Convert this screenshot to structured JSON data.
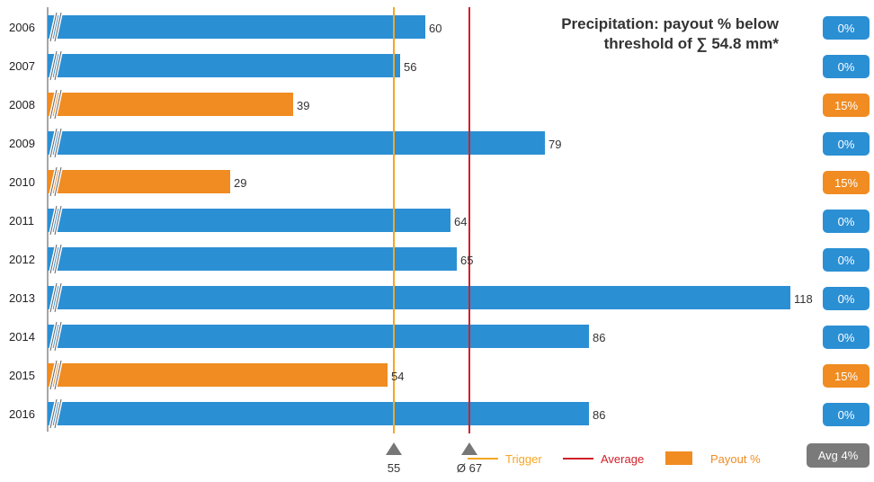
{
  "chart_data": {
    "type": "bar",
    "orientation": "horizontal",
    "title_lines": [
      "Precipitation: payout % below",
      "threshold of ∑ 54.8 mm*"
    ],
    "categories": [
      "2006",
      "2007",
      "2008",
      "2009",
      "2010",
      "2011",
      "2012",
      "2013",
      "2014",
      "2015",
      "2016"
    ],
    "values": [
      60,
      56,
      39,
      79,
      29,
      64,
      65,
      118,
      86,
      54,
      86
    ],
    "payout": [
      "0%",
      "0%",
      "15%",
      "0%",
      "15%",
      "0%",
      "0%",
      "0%",
      "0%",
      "15%",
      "0%"
    ],
    "payout_flags": [
      false,
      false,
      true,
      false,
      true,
      false,
      false,
      false,
      false,
      true,
      false
    ],
    "trigger": 55,
    "trigger_label": "55",
    "average": 67,
    "average_label": "Ø 67",
    "avg_badge": "Avg 4%",
    "axis_break": true,
    "legend": {
      "trigger": "Trigger",
      "average": "Average",
      "payout": "Payout %",
      "position": "bottom-right"
    },
    "colors": {
      "bar": "#2b8fd4",
      "payout_bar": "#f08c22",
      "trigger_line": "#f5a623",
      "average_line": "#d0202a",
      "badge_blue": "#2b8fd4",
      "badge_orange": "#f08c22",
      "badge_avg": "#7a7a7a",
      "marker": "#777777"
    }
  }
}
